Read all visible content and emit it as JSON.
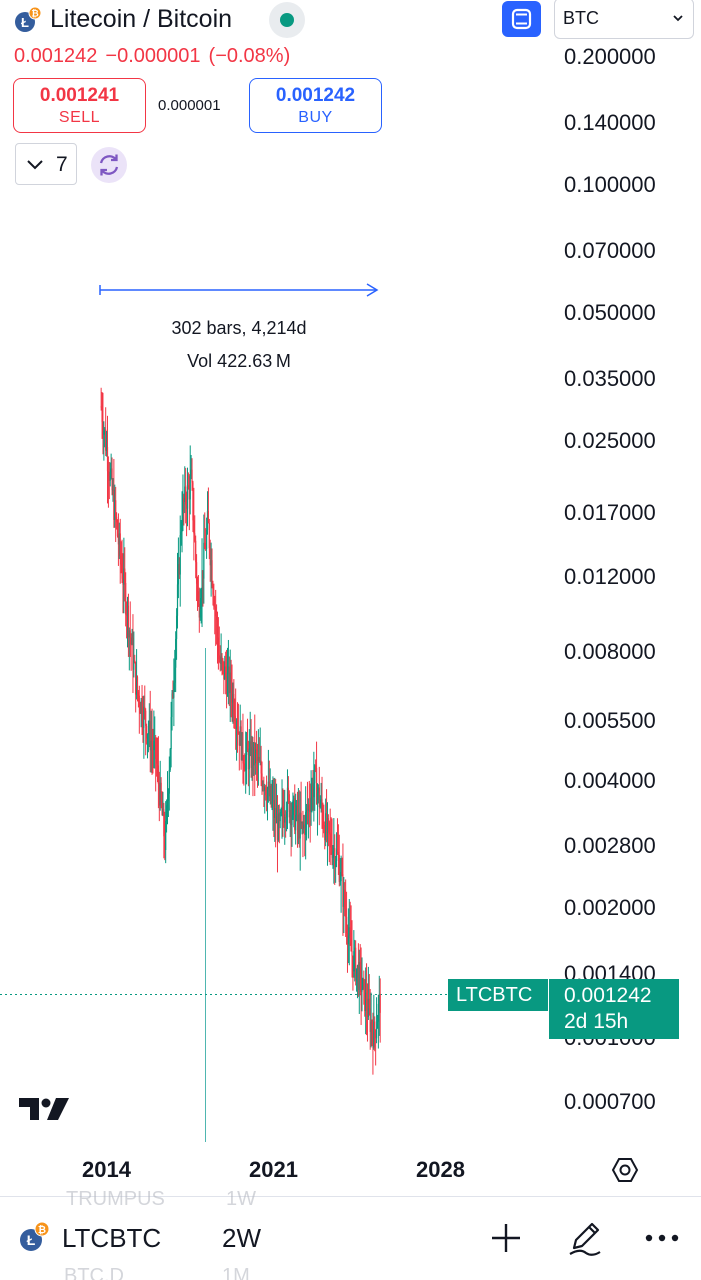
{
  "header": {
    "title": "Litecoin / Bitcoin",
    "base_icon": "litecoin-icon",
    "quote_icon": "bitcoin-icon",
    "status_color": "#089981",
    "currency": "BTC"
  },
  "quote": {
    "last": "0.001242",
    "change": "−0.000001",
    "change_pct": "(−0.08%)",
    "down_color": "#f23645"
  },
  "trade": {
    "sell_price": "0.001241",
    "sell_label": "SELL",
    "spread": "0.000001",
    "buy_price": "0.001242",
    "buy_label": "BUY"
  },
  "indicators": {
    "count": "7"
  },
  "chart": {
    "measure_bars": "302 bars, 4,214d",
    "measure_vol": "Vol 422.63 M",
    "symbol_tag": "LTCBTC",
    "price_tag": "0.001242",
    "countdown": "2d 15h",
    "tag_color": "#089981",
    "up_color": "#089981",
    "down_color": "#f23645",
    "accent_color": "#2962ff"
  },
  "price_scale": [
    "0.200000",
    "0.140000",
    "0.100000",
    "0.070000",
    "0.050000",
    "0.035000",
    "0.025000",
    "0.017000",
    "0.012000",
    "0.008000",
    "0.005500",
    "0.004000",
    "0.002800",
    "0.002000",
    "0.001400",
    "0.001000",
    "0.000700"
  ],
  "time_scale": [
    "2014",
    "2021",
    "2028"
  ],
  "toolbar": {
    "symbol": "LTCBTC",
    "interval": "2W",
    "ghost_row_1_symbol": "TRUMPUS",
    "ghost_row_1_interval": "1W",
    "ghost_row_2_symbol": "BTC.D",
    "ghost_row_2_interval": "1M"
  },
  "chart_data": {
    "type": "candlestick",
    "symbol": "LTCBTC",
    "interval": "2W",
    "y_scale": "log",
    "ylim": [
      0.00065,
      0.22
    ],
    "x_ticks": [
      "2014",
      "2021",
      "2028"
    ],
    "approx_closes": [
      {
        "x": 2013.5,
        "y": 0.03
      },
      {
        "x": 2014.5,
        "y": 0.011
      },
      {
        "x": 2015.0,
        "y": 0.0065
      },
      {
        "x": 2015.8,
        "y": 0.0045
      },
      {
        "x": 2016.2,
        "y": 0.0028
      },
      {
        "x": 2016.9,
        "y": 0.017
      },
      {
        "x": 2017.3,
        "y": 0.02
      },
      {
        "x": 2017.6,
        "y": 0.01
      },
      {
        "x": 2018.0,
        "y": 0.016
      },
      {
        "x": 2018.5,
        "y": 0.0075
      },
      {
        "x": 2019.0,
        "y": 0.0065
      },
      {
        "x": 2019.5,
        "y": 0.0045
      },
      {
        "x": 2020.0,
        "y": 0.0045
      },
      {
        "x": 2020.5,
        "y": 0.0038
      },
      {
        "x": 2021.0,
        "y": 0.003
      },
      {
        "x": 2021.3,
        "y": 0.0036
      },
      {
        "x": 2022.0,
        "y": 0.003
      },
      {
        "x": 2022.5,
        "y": 0.004
      },
      {
        "x": 2023.0,
        "y": 0.003
      },
      {
        "x": 2023.5,
        "y": 0.0026
      },
      {
        "x": 2024.0,
        "y": 0.0016
      },
      {
        "x": 2024.5,
        "y": 0.0013
      },
      {
        "x": 2025.0,
        "y": 0.001
      },
      {
        "x": 2025.3,
        "y": 0.00124
      }
    ],
    "last_price": 0.001242
  }
}
